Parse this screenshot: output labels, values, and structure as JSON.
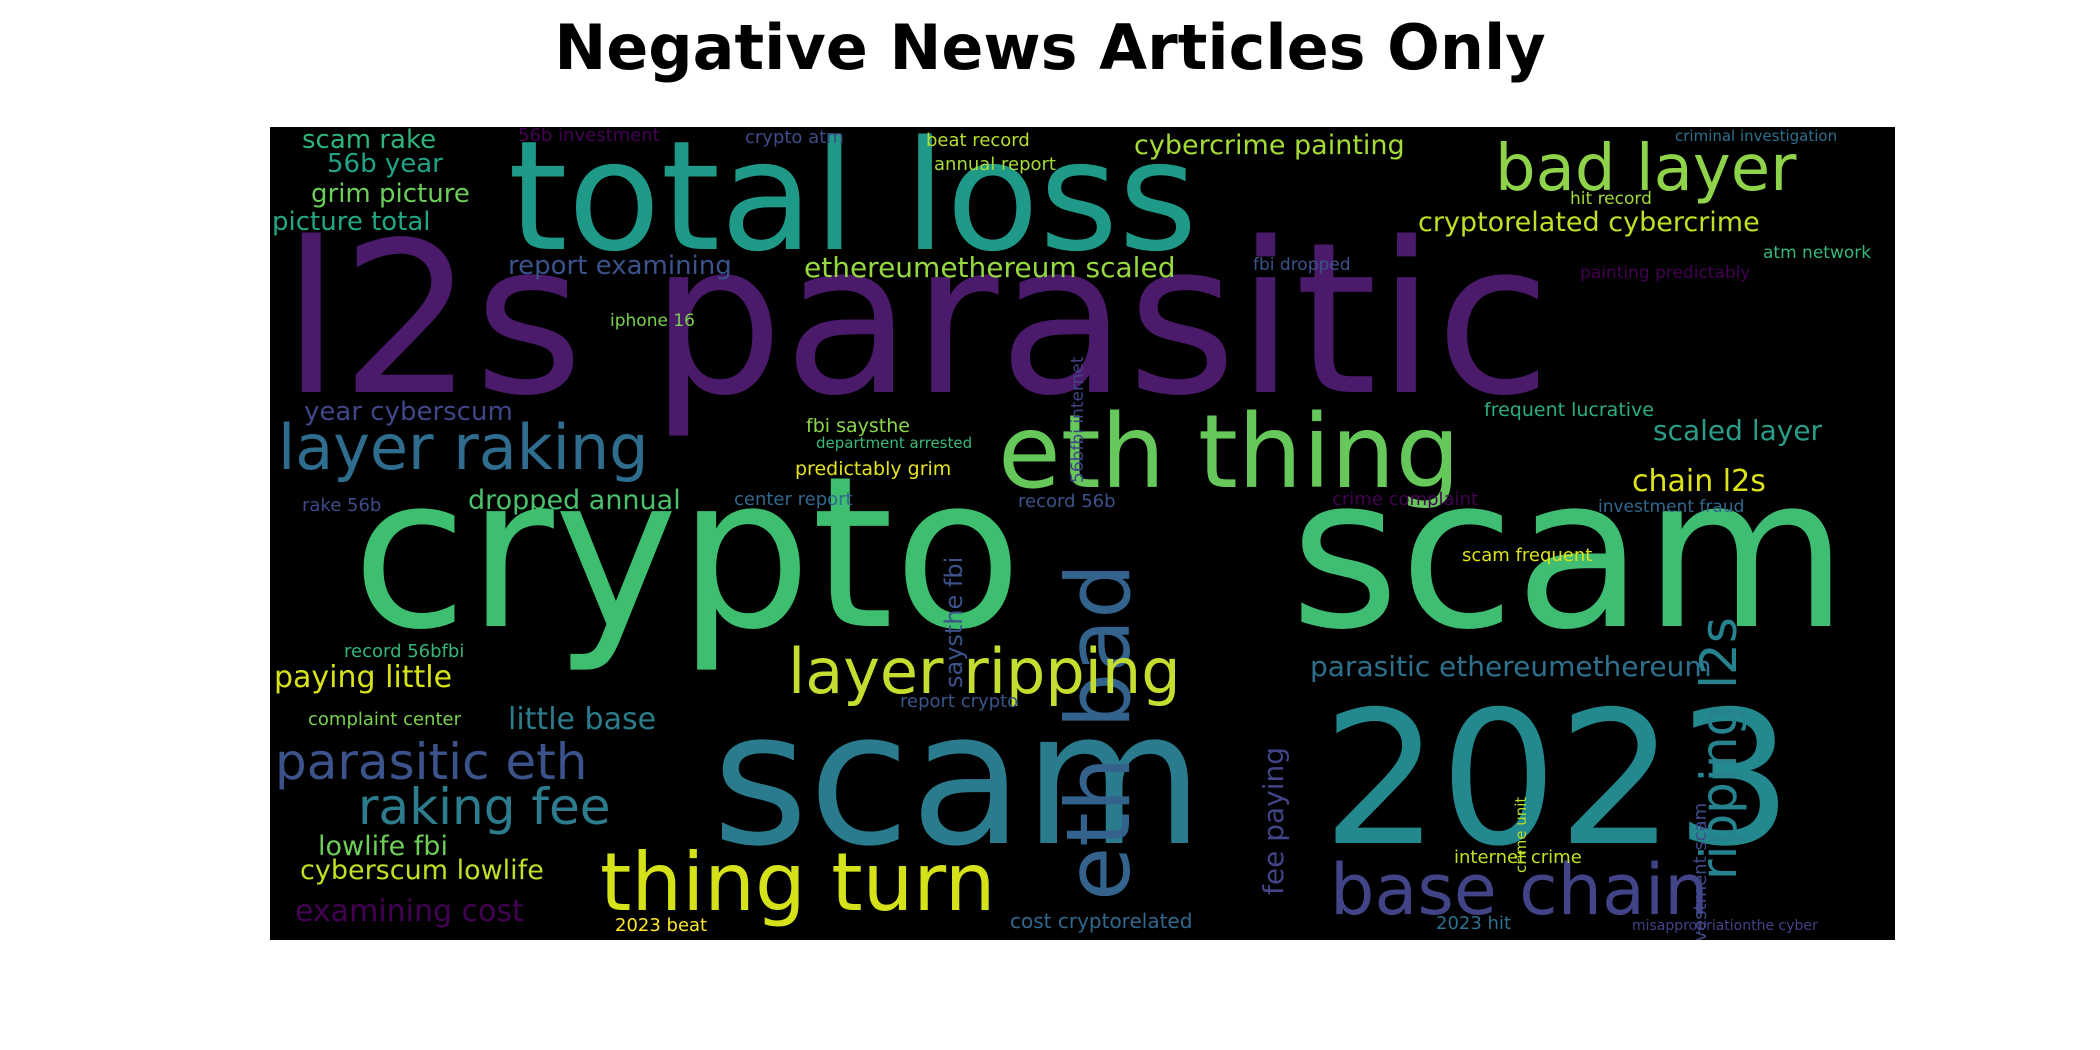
{
  "title": "Negative News Articles Only",
  "background_color": "#000000",
  "colormap": "viridis",
  "words": [
    {
      "text": "l2s parasitic",
      "color": "#4b1a6b"
    },
    {
      "text": "crypto",
      "color": "#3ebf6f"
    },
    {
      "text": "scam",
      "color": "#3fbd72"
    },
    {
      "text": "total loss",
      "color": "#1f9a89"
    },
    {
      "text": "scam",
      "color": "#2a7b8e"
    },
    {
      "text": "2023",
      "color": "#23898e"
    },
    {
      "text": "eth thing",
      "color": "#66c85a"
    },
    {
      "text": "eth bad",
      "color": "#33638d"
    },
    {
      "text": "bad layer",
      "color": "#8fd34a"
    },
    {
      "text": "layer raking",
      "color": "#2f6d8e"
    },
    {
      "text": "layer ripping",
      "color": "#c5dd2f"
    },
    {
      "text": "thing turn",
      "color": "#d5e21a"
    },
    {
      "text": "base chain",
      "color": "#414487"
    },
    {
      "text": "parasitic eth",
      "color": "#3b528b"
    },
    {
      "text": "raking fee",
      "color": "#2c7c8e"
    },
    {
      "text": "ripping l2s",
      "color": "#26828e"
    },
    {
      "text": "cybercrime painting",
      "color": "#a5db36"
    },
    {
      "text": "cryptorelated cybercrime",
      "color": "#c0df25"
    },
    {
      "text": "ethereumethereum scaled",
      "color": "#95d840"
    },
    {
      "text": "parasitic ethereumethereum",
      "color": "#2d708e"
    },
    {
      "text": "scaled layer",
      "color": "#2a9d8a"
    },
    {
      "text": "chain l2s",
      "color": "#dde318"
    },
    {
      "text": "paying little",
      "color": "#d8e219"
    },
    {
      "text": "little base",
      "color": "#2b7d8d"
    },
    {
      "text": "dropped annual",
      "color": "#4ac16d"
    },
    {
      "text": "year cyberscum",
      "color": "#3f4788"
    },
    {
      "text": "scam rake",
      "color": "#2fb47c"
    },
    {
      "text": "56b year",
      "color": "#20a386"
    },
    {
      "text": "grim picture",
      "color": "#6ccd5a"
    },
    {
      "text": "picture total",
      "color": "#22a785"
    },
    {
      "text": "report examining",
      "color": "#3b528b"
    },
    {
      "text": "lowlife fbi",
      "color": "#6ece58"
    },
    {
      "text": "cyberscum lowlife",
      "color": "#c2df23"
    },
    {
      "text": "examining cost",
      "color": "#440154"
    },
    {
      "text": "fee paying",
      "color": "#414487"
    },
    {
      "text": "saysthe fbi",
      "color": "#3b528b"
    },
    {
      "text": "56b investment",
      "color": "#440154"
    },
    {
      "text": "crypto atm",
      "color": "#3e4c8a"
    },
    {
      "text": "beat record",
      "color": "#b5de2b"
    },
    {
      "text": "annual report",
      "color": "#a8db34"
    },
    {
      "text": "criminal investigation",
      "color": "#2e6f8e"
    },
    {
      "text": "hit record",
      "color": "#a2da37"
    },
    {
      "text": "atm network",
      "color": "#35b779"
    },
    {
      "text": "fbi dropped",
      "color": "#3b528b"
    },
    {
      "text": "painting predictably",
      "color": "#440154"
    },
    {
      "text": "iphone 16",
      "color": "#7ad151"
    },
    {
      "text": "56bfbi internet",
      "color": "#414487"
    },
    {
      "text": "frequent lucrative",
      "color": "#29af7f"
    },
    {
      "text": "fbi saysthe",
      "color": "#8bd646"
    },
    {
      "text": "department arrested",
      "color": "#38b977"
    },
    {
      "text": "predictably grim",
      "color": "#e5e419"
    },
    {
      "text": "rake 56b",
      "color": "#3e4a89"
    },
    {
      "text": "center report",
      "color": "#31688e"
    },
    {
      "text": "record 56b",
      "color": "#3b528b"
    },
    {
      "text": "crime complaint",
      "color": "#440154"
    },
    {
      "text": "investment fraud",
      "color": "#31688e"
    },
    {
      "text": "scam frequent",
      "color": "#dde318"
    },
    {
      "text": "record 56bfbi",
      "color": "#35b779"
    },
    {
      "text": "complaint center",
      "color": "#7ad151"
    },
    {
      "text": "report crypto",
      "color": "#39568c"
    },
    {
      "text": "crime unit",
      "color": "#b8de29"
    },
    {
      "text": "investment scam",
      "color": "#3e4989"
    },
    {
      "text": "internet crime",
      "color": "#c2df23"
    },
    {
      "text": "2023 beat",
      "color": "#fde725"
    },
    {
      "text": "cost cryptorelated",
      "color": "#31688e"
    },
    {
      "text": "2023 hit",
      "color": "#2c728e"
    },
    {
      "text": "misappropriationthe cyber",
      "color": "#414487"
    }
  ]
}
